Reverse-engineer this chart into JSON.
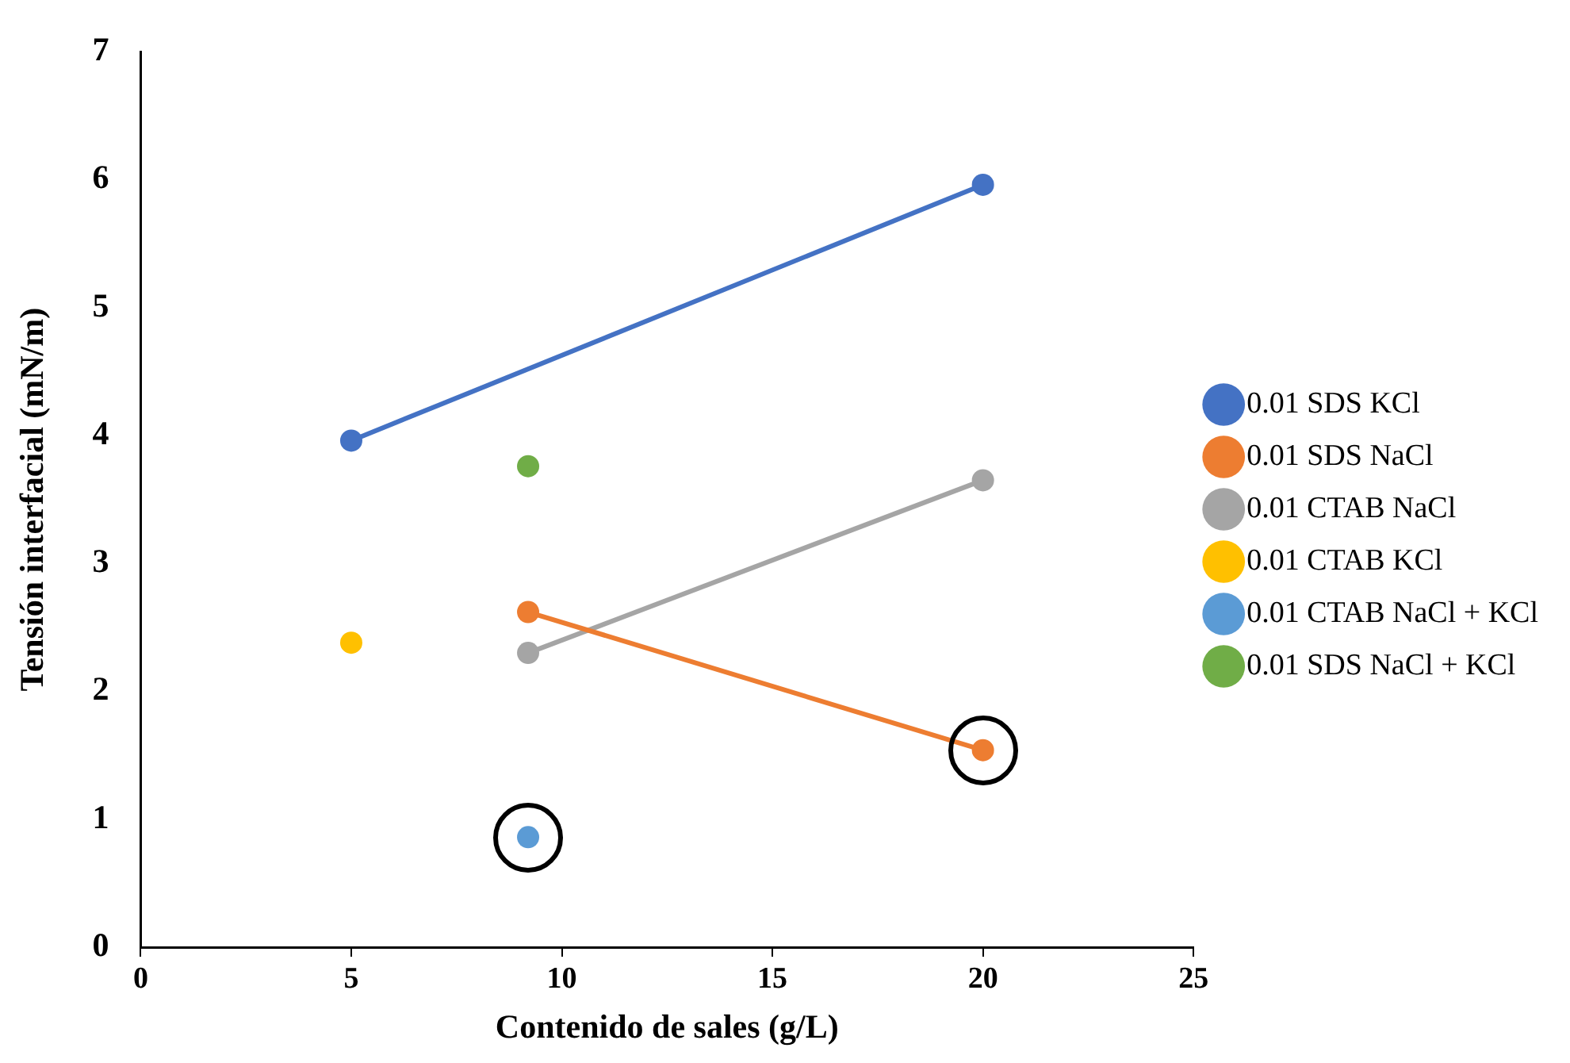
{
  "chart_data": {
    "type": "line",
    "xlabel": "Contenido de sales (g/L)",
    "ylabel": "Tensión interfacial (mN/m)",
    "xlim": [
      0,
      25
    ],
    "xticks": [
      0,
      5,
      10,
      15,
      20,
      25
    ],
    "ylim": [
      0,
      7
    ],
    "yticks": [
      0,
      1,
      2,
      3,
      4,
      5,
      6,
      7
    ],
    "grid": false,
    "legend": "right",
    "marker": "circle",
    "line_style": "solid",
    "series": [
      {
        "name": "0.01 SDS KCl",
        "color": "#4472c4",
        "x": [
          5,
          20
        ],
        "values": [
          3.96,
          5.96
        ]
      },
      {
        "name": "0.01 SDS NaCl",
        "color": "#ed7d31",
        "x": [
          9.2,
          20
        ],
        "values": [
          2.62,
          1.54
        ]
      },
      {
        "name": "0.01 CTAB NaCl",
        "color": "#a5a5a5",
        "x": [
          9.2,
          20
        ],
        "values": [
          2.3,
          3.65
        ]
      },
      {
        "name": "0.01 CTAB KCl",
        "color": "#ffc000",
        "x": [
          5
        ],
        "values": [
          2.38
        ]
      },
      {
        "name": "0.01 CTAB NaCl + KCl",
        "color": "#5b9bd5",
        "x": [
          9.2
        ],
        "values": [
          0.86
        ]
      },
      {
        "name": "0.01 SDS NaCl + KCl",
        "color": "#70ad47",
        "x": [
          9.2
        ],
        "values": [
          3.76
        ]
      }
    ]
  }
}
